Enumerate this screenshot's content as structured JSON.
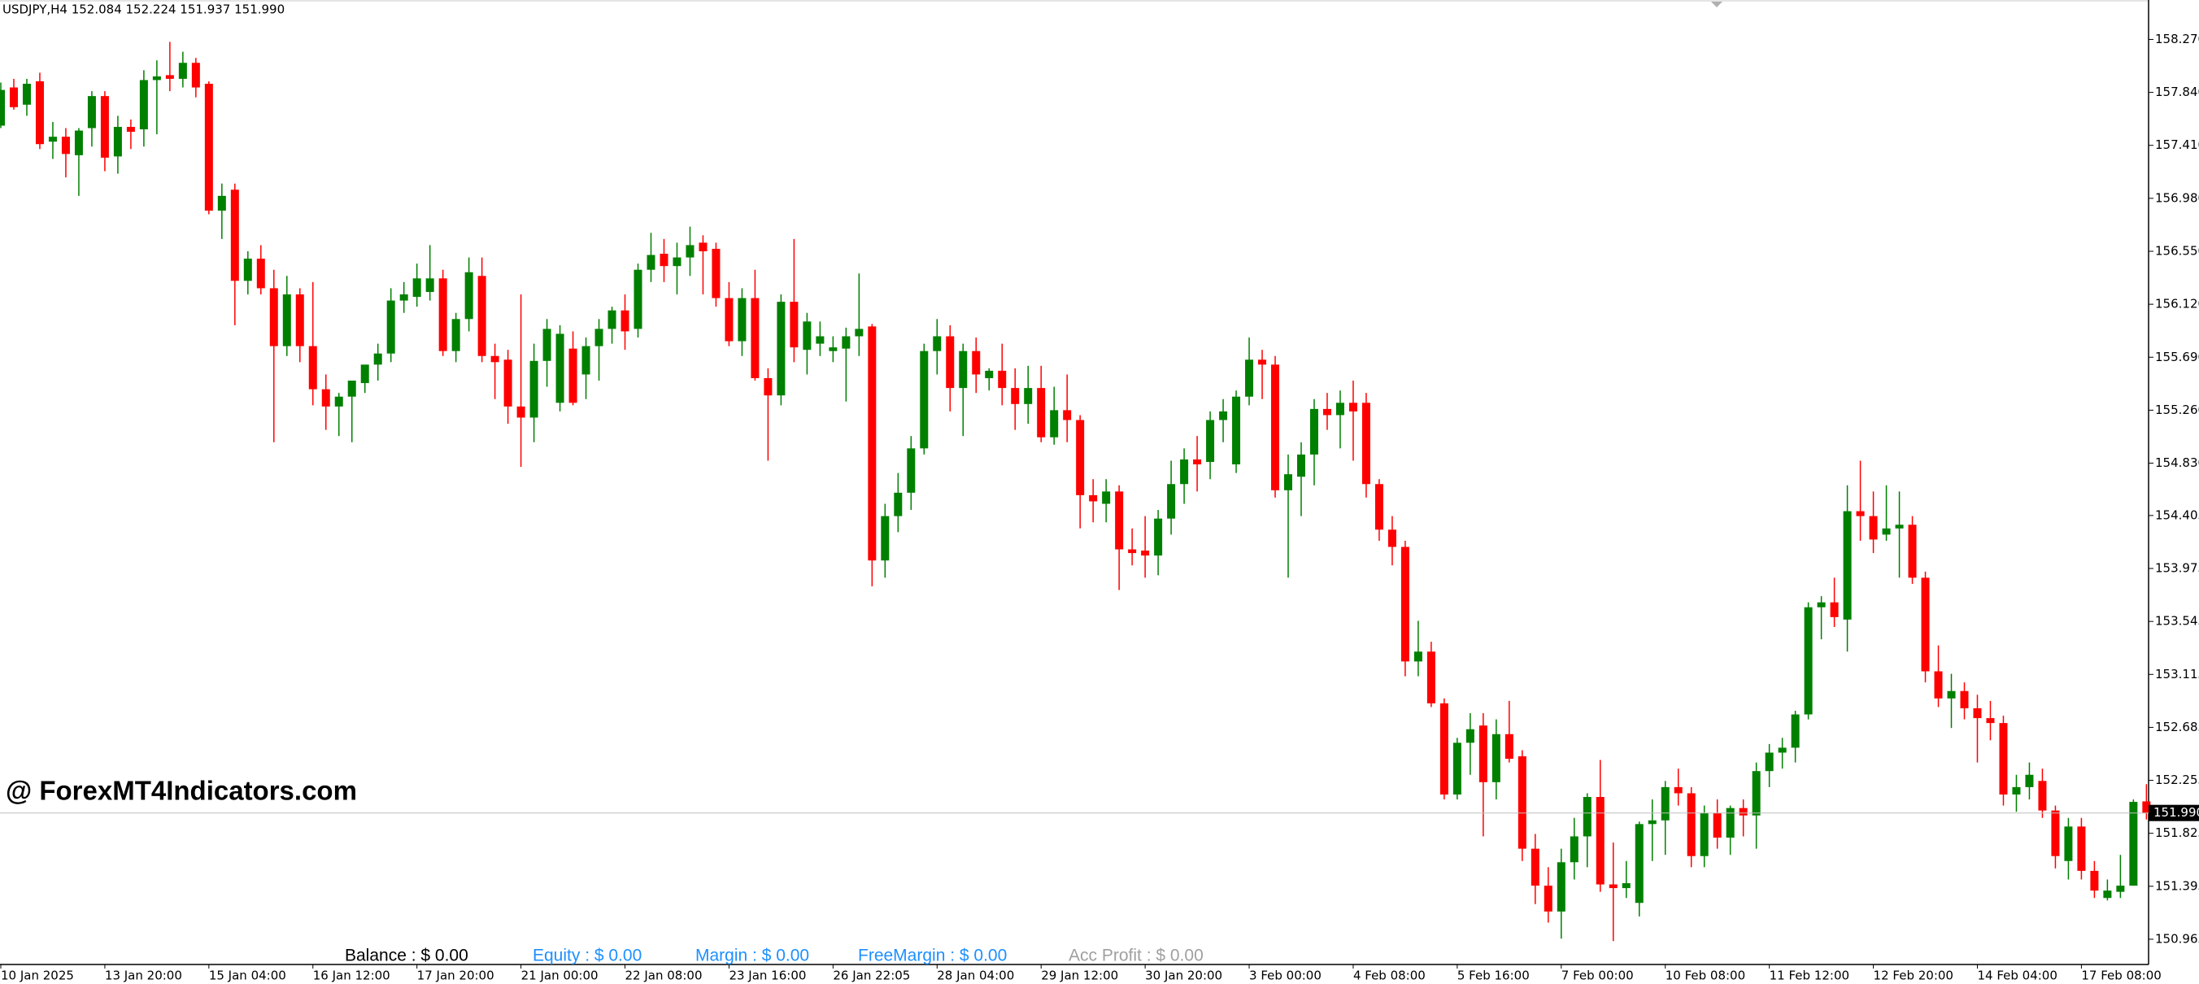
{
  "chart_data": {
    "type": "candlestick",
    "title": "USDJPY,H4  152.084 152.224 151.937 151.990",
    "watermark": "@ ForexMT4Indicators.com",
    "account": [
      {
        "text": "Balance : $ 0.00",
        "color": "#000000"
      },
      {
        "text": "Equity : $ 0.00",
        "color": "#1e90ff"
      },
      {
        "text": "Margin : $ 0.00",
        "color": "#1e90ff"
      },
      {
        "text": "FreeMargin : $ 0.00",
        "color": "#1e90ff"
      },
      {
        "text": "Acc Profit : $ 0.00",
        "color": "#a0a0a0"
      }
    ],
    "up_color": "#008000",
    "down_color": "#ff0000",
    "ylim": [
      150.76,
      158.59
    ],
    "yticks": [
      {
        "value": 158.27,
        "label": "158.270"
      },
      {
        "value": 157.84,
        "label": "157.840"
      },
      {
        "value": 157.41,
        "label": "157.410"
      },
      {
        "value": 156.98,
        "label": "156.980"
      },
      {
        "value": 156.55,
        "label": "156.550"
      },
      {
        "value": 156.12,
        "label": "156.120"
      },
      {
        "value": 155.69,
        "label": "155.690"
      },
      {
        "value": 155.26,
        "label": "155.260"
      },
      {
        "value": 154.83,
        "label": "154.830"
      },
      154.405,
      153.975,
      153.545,
      153.115,
      152.685,
      152.255,
      151.825,
      151.395,
      150.965
    ],
    "current_price": {
      "value": 151.99,
      "label": "151.990"
    },
    "categories": [
      "10 Jan 2025",
      null,
      null,
      null,
      null,
      null,
      null,
      null,
      "13 Jan 20:00",
      null,
      null,
      null,
      null,
      null,
      null,
      null,
      "15 Jan 04:00",
      null,
      null,
      null,
      null,
      null,
      null,
      null,
      "16 Jan 12:00",
      null,
      null,
      null,
      null,
      null,
      null,
      null,
      "17 Jan 20:00",
      null,
      null,
      null,
      null,
      null,
      null,
      null,
      "21 Jan 00:00",
      null,
      null,
      null,
      null,
      null,
      null,
      null,
      "22 Jan 08:00",
      null,
      null,
      null,
      null,
      null,
      null,
      null,
      "23 Jan 16:00",
      null,
      null,
      null,
      null,
      null,
      null,
      null,
      "26 Jan 22:05",
      null,
      null,
      null,
      null,
      null,
      null,
      null,
      "28 Jan 04:00",
      null,
      null,
      null,
      null,
      null,
      null,
      null,
      "29 Jan 12:00",
      null,
      null,
      null,
      null,
      null,
      null,
      null,
      "30 Jan 20:00",
      null,
      null,
      null,
      null,
      null,
      null,
      null,
      "3 Feb 00:00",
      null,
      null,
      null,
      null,
      null,
      null,
      null,
      "4 Feb 08:00",
      null,
      null,
      null,
      null,
      null,
      null,
      null,
      "5 Feb 16:00",
      null,
      null,
      null,
      null,
      null,
      null,
      null,
      "7 Feb 00:00",
      null,
      null,
      null,
      null,
      null,
      null,
      null,
      "10 Feb 08:00",
      null,
      null,
      null,
      null,
      null,
      null,
      null,
      "11 Feb 12:00",
      null,
      null,
      null,
      null,
      null,
      null,
      null,
      "12 Feb 20:00",
      null,
      null,
      null,
      null,
      null,
      null,
      null,
      "14 Feb 04:00",
      null,
      null,
      null,
      null,
      null,
      null,
      null,
      "17 Feb 08:00",
      null,
      null,
      null,
      null,
      null
    ],
    "open": [
      157.57,
      157.88,
      157.74,
      157.93,
      157.44,
      157.48,
      157.33,
      157.55,
      157.81,
      157.32,
      157.56,
      157.54,
      157.94,
      157.98,
      157.95,
      158.08,
      157.91,
      156.88,
      157.05,
      156.31,
      156.49,
      156.25,
      155.78,
      156.2,
      155.78,
      155.43,
      155.29,
      155.37,
      155.48,
      155.63,
      155.72,
      156.15,
      156.18,
      156.22,
      156.33,
      155.74,
      156.0,
      156.35,
      155.7,
      155.67,
      155.29,
      155.2,
      155.66,
      155.32,
      155.76,
      155.55,
      155.78,
      155.92,
      156.07,
      155.92,
      156.4,
      156.53,
      156.43,
      156.5,
      156.62,
      156.57,
      156.17,
      155.82,
      156.17,
      155.52,
      155.38,
      156.14,
      155.75,
      155.8,
      155.74,
      155.76,
      155.86,
      155.94,
      154.04,
      154.4,
      154.59,
      154.95,
      155.74,
      155.86,
      155.44,
      155.74,
      155.52,
      155.58,
      155.44,
      155.31,
      155.44,
      155.04,
      155.26,
      155.18,
      154.57,
      154.5,
      154.6,
      154.13,
      154.12,
      154.08,
      154.38,
      154.66,
      154.86,
      154.84,
      155.18,
      154.82,
      155.37,
      155.67,
      155.63,
      154.61,
      154.72,
      154.9,
      155.27,
      155.22,
      155.32,
      155.32,
      154.66,
      154.29,
      154.15,
      153.22,
      153.3,
      152.88,
      152.14,
      152.56,
      152.7,
      152.24,
      152.63,
      152.45,
      151.7,
      151.4,
      151.19,
      151.59,
      151.8,
      152.12,
      151.41,
      151.38,
      151.26,
      151.9,
      151.93,
      152.2,
      152.15,
      151.64,
      151.99,
      151.79,
      152.03,
      151.97,
      152.33,
      152.48,
      152.52,
      152.79,
      153.66,
      153.7,
      153.56,
      154.44,
      154.4,
      154.25,
      154.3,
      154.33,
      153.9,
      153.14,
      152.92,
      152.98,
      152.84,
      152.76,
      152.72,
      152.14,
      152.2,
      152.25,
      152.01,
      151.6,
      151.88,
      151.52,
      151.3,
      151.35,
      151.4,
      152.084
    ],
    "high": [
      157.92,
      157.95,
      157.95,
      158.0,
      157.6,
      157.55,
      157.55,
      157.85,
      157.85,
      157.65,
      157.62,
      158.02,
      158.1,
      158.25,
      158.17,
      158.12,
      157.93,
      157.1,
      157.1,
      156.55,
      156.6,
      156.4,
      156.35,
      156.25,
      156.3,
      155.55,
      155.4,
      155.45,
      155.6,
      155.8,
      156.25,
      156.3,
      156.45,
      156.6,
      156.4,
      156.05,
      156.5,
      156.5,
      155.8,
      155.75,
      156.2,
      155.8,
      156.0,
      155.95,
      155.9,
      155.85,
      156.0,
      156.1,
      156.2,
      156.45,
      156.7,
      156.65,
      156.62,
      156.75,
      156.68,
      156.62,
      156.3,
      156.25,
      156.4,
      155.6,
      156.2,
      156.65,
      156.05,
      155.98,
      155.86,
      155.93,
      156.37,
      155.96,
      154.5,
      154.75,
      155.05,
      155.8,
      156.0,
      155.95,
      155.8,
      155.85,
      155.6,
      155.8,
      155.6,
      155.62,
      155.62,
      155.45,
      155.55,
      155.22,
      154.7,
      154.7,
      154.65,
      154.3,
      154.4,
      154.45,
      154.85,
      154.95,
      155.05,
      155.25,
      155.35,
      155.42,
      155.85,
      155.75,
      155.7,
      154.9,
      155.0,
      155.35,
      155.4,
      155.42,
      155.5,
      155.4,
      154.7,
      154.4,
      154.2,
      153.55,
      153.38,
      152.92,
      152.6,
      152.8,
      152.8,
      152.75,
      152.9,
      152.5,
      151.82,
      151.55,
      151.7,
      151.95,
      152.15,
      152.42,
      151.75,
      151.6,
      151.92,
      152.1,
      152.25,
      152.35,
      152.2,
      152.05,
      152.1,
      152.05,
      152.1,
      152.4,
      152.55,
      152.6,
      152.82,
      153.7,
      153.75,
      153.9,
      154.65,
      154.85,
      154.6,
      154.65,
      154.6,
      154.4,
      153.95,
      153.35,
      153.12,
      153.05,
      152.95,
      152.9,
      152.78,
      152.3,
      152.4,
      152.35,
      152.05,
      151.95,
      151.95,
      151.6,
      151.45,
      151.65,
      152.1,
      152.224
    ],
    "low": [
      157.55,
      157.7,
      157.65,
      157.38,
      157.3,
      157.15,
      157.0,
      157.4,
      157.2,
      157.18,
      157.38,
      157.4,
      157.5,
      157.85,
      157.88,
      157.8,
      156.85,
      156.65,
      155.95,
      156.2,
      156.2,
      155.0,
      155.7,
      155.65,
      155.3,
      155.1,
      155.05,
      155.0,
      155.4,
      155.5,
      155.65,
      156.05,
      156.1,
      156.15,
      155.7,
      155.65,
      155.9,
      155.65,
      155.35,
      155.15,
      154.8,
      155.0,
      155.45,
      155.25,
      155.3,
      155.35,
      155.5,
      155.8,
      155.75,
      155.85,
      156.3,
      156.3,
      156.2,
      156.35,
      156.2,
      156.1,
      155.78,
      155.7,
      155.5,
      154.85,
      155.3,
      155.65,
      155.55,
      155.7,
      155.65,
      155.33,
      155.7,
      153.83,
      153.9,
      154.27,
      154.45,
      154.9,
      155.55,
      155.25,
      155.05,
      155.4,
      155.42,
      155.3,
      155.1,
      155.15,
      155.0,
      154.98,
      155.0,
      154.3,
      154.35,
      154.35,
      153.8,
      154.0,
      153.9,
      153.92,
      154.25,
      154.5,
      154.6,
      154.7,
      155.0,
      154.75,
      155.3,
      155.35,
      154.55,
      153.9,
      154.4,
      154.65,
      155.1,
      154.95,
      154.85,
      154.55,
      154.2,
      154.0,
      153.1,
      153.1,
      152.85,
      152.1,
      152.1,
      152.3,
      151.8,
      152.1,
      152.4,
      151.6,
      151.25,
      151.1,
      150.97,
      151.45,
      151.55,
      151.35,
      150.95,
      151.3,
      151.15,
      151.6,
      151.65,
      152.05,
      151.55,
      151.55,
      151.7,
      151.65,
      151.8,
      151.7,
      152.2,
      152.35,
      152.4,
      152.75,
      153.4,
      153.5,
      153.3,
      154.2,
      154.1,
      154.2,
      153.9,
      153.85,
      153.05,
      152.85,
      152.68,
      152.75,
      152.4,
      152.58,
      152.05,
      152.0,
      152.1,
      151.95,
      151.54,
      151.45,
      151.45,
      151.3,
      151.28,
      151.3,
      151.4,
      151.937
    ],
    "close": [
      157.86,
      157.72,
      157.91,
      157.42,
      157.48,
      157.34,
      157.53,
      157.81,
      157.31,
      157.56,
      157.52,
      157.94,
      157.97,
      157.95,
      158.08,
      157.88,
      156.88,
      157.0,
      156.31,
      156.49,
      156.25,
      155.78,
      156.2,
      155.78,
      155.43,
      155.29,
      155.37,
      155.5,
      155.63,
      155.72,
      156.15,
      156.2,
      156.33,
      156.33,
      155.74,
      156.0,
      156.38,
      155.7,
      155.65,
      155.29,
      155.2,
      155.66,
      155.92,
      155.88,
      155.32,
      155.78,
      155.92,
      156.07,
      155.9,
      156.4,
      156.52,
      156.43,
      156.5,
      156.6,
      156.55,
      156.17,
      155.82,
      156.17,
      155.52,
      155.38,
      156.14,
      155.77,
      155.98,
      155.86,
      155.77,
      155.86,
      155.92,
      154.04,
      154.4,
      154.59,
      154.95,
      155.74,
      155.86,
      155.44,
      155.74,
      155.55,
      155.58,
      155.44,
      155.31,
      155.44,
      155.04,
      155.26,
      155.18,
      154.57,
      154.52,
      154.6,
      154.13,
      154.1,
      154.08,
      154.38,
      154.66,
      154.86,
      154.82,
      155.18,
      155.25,
      155.37,
      155.67,
      155.63,
      154.61,
      154.74,
      154.9,
      155.27,
      155.22,
      155.32,
      155.25,
      154.66,
      154.29,
      154.15,
      153.22,
      153.3,
      152.88,
      152.14,
      152.56,
      152.67,
      152.24,
      152.63,
      152.43,
      151.7,
      151.4,
      151.19,
      151.59,
      151.8,
      152.12,
      151.41,
      151.38,
      151.42,
      151.9,
      151.93,
      152.2,
      152.15,
      151.64,
      151.99,
      151.79,
      152.03,
      151.97,
      152.33,
      152.48,
      152.52,
      152.79,
      153.66,
      153.7,
      153.58,
      154.44,
      154.4,
      154.21,
      154.3,
      154.33,
      153.9,
      153.14,
      152.92,
      152.98,
      152.84,
      152.76,
      152.72,
      152.14,
      152.2,
      152.3,
      152.01,
      151.64,
      151.88,
      151.52,
      151.36,
      151.36,
      151.4,
      152.08,
      151.99
    ]
  }
}
